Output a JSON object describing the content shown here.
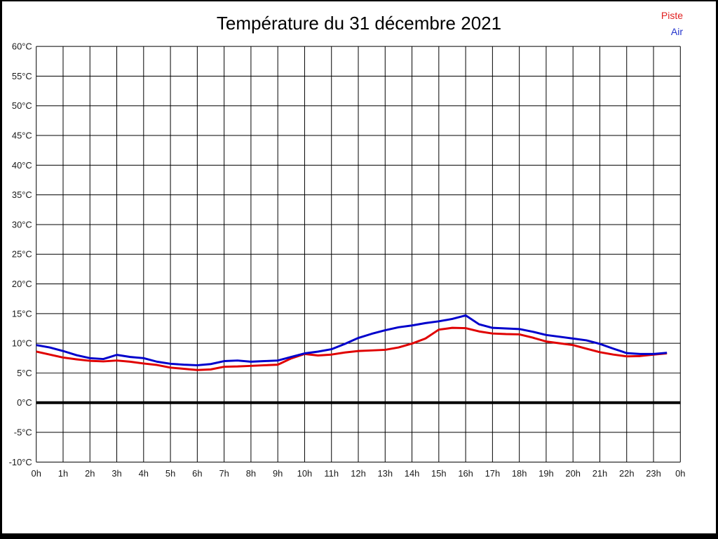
{
  "title": "Température du 31 décembre 2021",
  "legend": {
    "items": [
      {
        "label": "Piste",
        "color": "#e02020"
      },
      {
        "label": "Air",
        "color": "#2233cc"
      }
    ]
  },
  "chart_data": {
    "type": "line",
    "title": "Température du 31 décembre 2021",
    "xlabel": "",
    "ylabel": "",
    "xlim": [
      0,
      24
    ],
    "ylim": [
      -10,
      60
    ],
    "y_tick_step": 5,
    "grid": true,
    "grid_color": "#000000",
    "zero_line_value": 0,
    "zero_line_color": "#000000",
    "legend_position": "top-right",
    "x_tick_labels": [
      "0h",
      "1h",
      "2h",
      "3h",
      "4h",
      "5h",
      "6h",
      "7h",
      "8h",
      "9h",
      "10h",
      "11h",
      "12h",
      "13h",
      "14h",
      "15h",
      "16h",
      "17h",
      "18h",
      "19h",
      "20h",
      "21h",
      "22h",
      "23h",
      "0h"
    ],
    "y_tick_labels": [
      "60°C",
      "55°C",
      "50°C",
      "45°C",
      "40°C",
      "35°C",
      "30°C",
      "25°C",
      "20°C",
      "15°C",
      "10°C",
      "5°C",
      "0°C",
      "-5°C",
      "-10°C"
    ],
    "x_hours": [
      0,
      0.5,
      1,
      1.5,
      2,
      2.5,
      3,
      3.5,
      4,
      4.5,
      5,
      5.5,
      6,
      6.5,
      7,
      7.5,
      8,
      8.5,
      9,
      9.5,
      10,
      10.5,
      11,
      11.5,
      12,
      12.5,
      13,
      13.5,
      14,
      14.5,
      15,
      15.5,
      16,
      16.5,
      17,
      17.5,
      18,
      18.5,
      19,
      19.5,
      20,
      20.5,
      21,
      21.5,
      22,
      22.5,
      23,
      23.5
    ],
    "series": [
      {
        "name": "Piste",
        "color": "#e00000",
        "values": [
          8.6,
          8.1,
          7.6,
          7.3,
          7.05,
          6.95,
          7.1,
          6.9,
          6.6,
          6.35,
          5.9,
          5.7,
          5.5,
          5.6,
          6.05,
          6.1,
          6.2,
          6.3,
          6.4,
          7.45,
          8.2,
          7.95,
          8.1,
          8.45,
          8.7,
          8.8,
          8.9,
          9.3,
          9.95,
          10.8,
          12.3,
          12.6,
          12.55,
          12.0,
          11.65,
          11.55,
          11.5,
          10.95,
          10.3,
          10.0,
          9.7,
          9.1,
          8.5,
          8.1,
          7.8,
          7.85,
          8.1,
          8.3
        ]
      },
      {
        "name": "Air",
        "color": "#0000cc",
        "values": [
          9.7,
          9.3,
          8.7,
          8.0,
          7.5,
          7.35,
          8.05,
          7.7,
          7.5,
          6.9,
          6.55,
          6.4,
          6.3,
          6.5,
          7.0,
          7.1,
          6.9,
          7.0,
          7.1,
          7.7,
          8.3,
          8.6,
          9.0,
          9.9,
          10.9,
          11.6,
          12.2,
          12.7,
          13.0,
          13.4,
          13.7,
          14.1,
          14.7,
          13.2,
          12.6,
          12.5,
          12.4,
          11.95,
          11.4,
          11.1,
          10.8,
          10.5,
          9.9,
          9.1,
          8.35,
          8.2,
          8.2,
          8.4
        ]
      }
    ]
  }
}
